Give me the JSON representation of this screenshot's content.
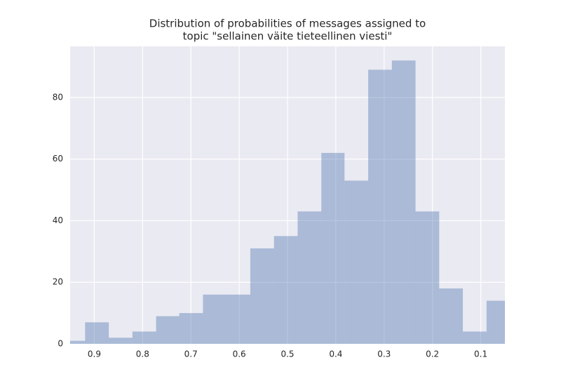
{
  "chart_data": {
    "type": "histogram",
    "title": [
      "Distribution of probabilities of messages assigned to",
      "topic \"sellainen väite tieteellinen viesti\""
    ],
    "bins": [
      0.04,
      0.088,
      0.137,
      0.186,
      0.235,
      0.284,
      0.333,
      0.382,
      0.43,
      0.479,
      0.528,
      0.577,
      0.626,
      0.675,
      0.724,
      0.772,
      0.821,
      0.87,
      0.919,
      0.968
    ],
    "counts": [
      14,
      4,
      18,
      43,
      92,
      89,
      53,
      62,
      43,
      35,
      31,
      16,
      16,
      10,
      9,
      4,
      2,
      7,
      1
    ],
    "color": "#4c72b0",
    "alpha": 0.4,
    "xlim": [
      0.95,
      0.05
    ],
    "xticks": [
      0.9,
      0.8,
      0.7,
      0.6,
      0.5,
      0.4,
      0.3,
      0.2,
      0.1
    ],
    "ylim": [
      0,
      96.6
    ],
    "yticks": [
      0,
      20,
      40,
      60,
      80
    ],
    "grid": true
  }
}
